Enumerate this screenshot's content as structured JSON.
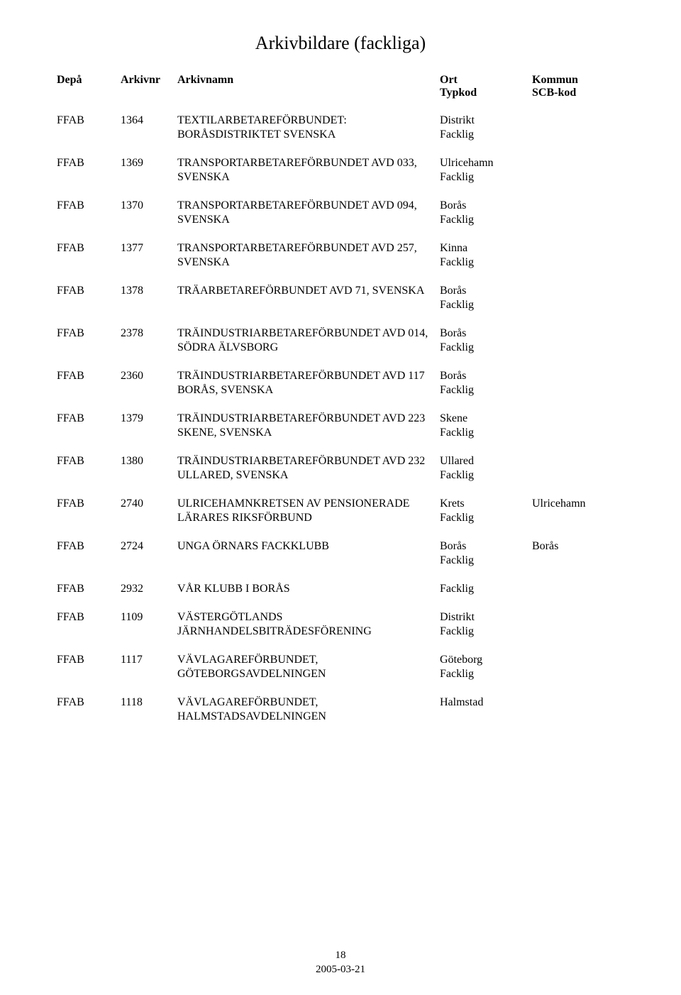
{
  "title": "Arkivbildare (fackliga)",
  "headers": {
    "depa": "Depå",
    "arkivnr": "Arkivnr",
    "arkivnamn": "Arkivnamn",
    "ort": "Ort",
    "kommun": "Kommun",
    "typkod": "Typkod",
    "scbkod": "SCB-kod"
  },
  "entries": [
    {
      "depa": "FFAB",
      "nr": "1364",
      "name": "TEXTILARBETAREFÖRBUNDET: BORÅSDISTRIKTET SVENSKA",
      "ort": "Distrikt",
      "kommun": "",
      "typ": "Facklig"
    },
    {
      "depa": "FFAB",
      "nr": "1369",
      "name": "TRANSPORTARBETAREFÖRBUNDET AVD 033, SVENSKA",
      "ort": "Ulricehamn",
      "kommun": "",
      "typ": "Facklig"
    },
    {
      "depa": "FFAB",
      "nr": "1370",
      "name": "TRANSPORTARBETAREFÖRBUNDET AVD 094, SVENSKA",
      "ort": "Borås",
      "kommun": "",
      "typ": "Facklig"
    },
    {
      "depa": "FFAB",
      "nr": "1377",
      "name": "TRANSPORTARBETAREFÖRBUNDET AVD 257, SVENSKA",
      "ort": "Kinna",
      "kommun": "",
      "typ": "Facklig"
    },
    {
      "depa": "FFAB",
      "nr": "1378",
      "name": "TRÄARBETAREFÖRBUNDET AVD 71, SVENSKA",
      "ort": "Borås",
      "kommun": "",
      "typ": "Facklig"
    },
    {
      "depa": "FFAB",
      "nr": "2378",
      "name": "TRÄINDUSTRIARBETAREFÖRBUNDET AVD 014, SÖDRA ÄLVSBORG",
      "ort": "Borås",
      "kommun": "",
      "typ": "Facklig"
    },
    {
      "depa": "FFAB",
      "nr": "2360",
      "name": "TRÄINDUSTRIARBETAREFÖRBUNDET AVD 117 BORÅS, SVENSKA",
      "ort": "Borås",
      "kommun": "",
      "typ": "Facklig"
    },
    {
      "depa": "FFAB",
      "nr": "1379",
      "name": "TRÄINDUSTRIARBETAREFÖRBUNDET AVD 223 SKENE, SVENSKA",
      "ort": "Skene",
      "kommun": "",
      "typ": "Facklig"
    },
    {
      "depa": "FFAB",
      "nr": "1380",
      "name": "TRÄINDUSTRIARBETAREFÖRBUNDET AVD 232 ULLARED, SVENSKA",
      "ort": "Ullared",
      "kommun": "",
      "typ": "Facklig"
    },
    {
      "depa": "FFAB",
      "nr": "2740",
      "name": "ULRICEHAMNKRETSEN AV PENSIONERADE LÄRARES RIKSFÖRBUND",
      "ort": "Krets",
      "kommun": "Ulricehamn",
      "typ": "Facklig"
    },
    {
      "depa": "FFAB",
      "nr": "2724",
      "name": "UNGA ÖRNARS FACKKLUBB",
      "ort": "Borås",
      "kommun": "Borås",
      "typ": "Facklig"
    },
    {
      "depa": "FFAB",
      "nr": "2932",
      "name": "VÅR KLUBB I BORÅS",
      "ort": "",
      "kommun": "",
      "typ": "Facklig"
    },
    {
      "depa": "FFAB",
      "nr": "1109",
      "name": "VÄSTERGÖTLANDS JÄRNHANDELSBITRÄDESFÖRENING",
      "ort": "Distrikt",
      "kommun": "",
      "typ": "Facklig"
    },
    {
      "depa": "FFAB",
      "nr": "1117",
      "name": "VÄVLAGAREFÖRBUNDET, GÖTEBORGSAVDELNINGEN",
      "ort": "Göteborg",
      "kommun": "",
      "typ": "Facklig"
    },
    {
      "depa": "FFAB",
      "nr": "1118",
      "name": "VÄVLAGAREFÖRBUNDET, HALMSTADSAVDELNINGEN",
      "ort": "Halmstad",
      "kommun": "",
      "typ": ""
    }
  ],
  "footer": {
    "page": "18",
    "date": "2005-03-21"
  }
}
